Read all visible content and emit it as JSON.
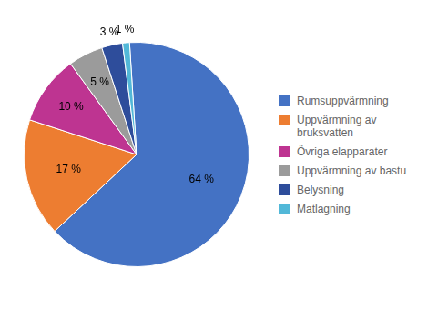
{
  "chart_data": {
    "type": "pie",
    "categories": [
      "Rumsuppvärmning",
      "Uppvärmning av\nbruksvatten",
      "Övriga elapparater",
      "Uppvärmning av bastu",
      "Belysning",
      "Matlagning"
    ],
    "values": [
      64,
      17,
      10,
      5,
      3,
      1
    ],
    "value_labels": [
      "64 %",
      "17 %",
      "10 %",
      "5 %",
      "3 %",
      "1 %"
    ],
    "colors": [
      "#4472C4",
      "#ED7D31",
      "#BE3491",
      "#9B9B9B",
      "#2E4D9B",
      "#52B8D8"
    ],
    "data_labels": true,
    "legend": "right"
  }
}
